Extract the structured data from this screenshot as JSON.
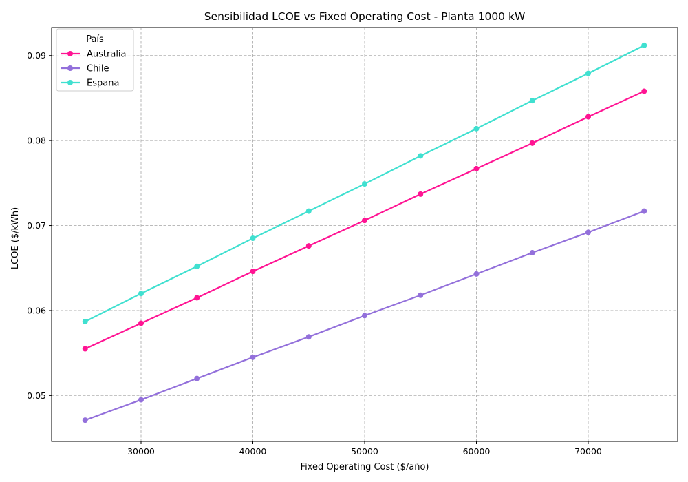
{
  "chart_data": {
    "type": "line",
    "title": "Sensibilidad LCOE vs Fixed Operating Cost - Planta 1000 kW",
    "xlabel": "Fixed Operating Cost ($/año)",
    "ylabel": "LCOE ($/kWh)",
    "xlim": [
      22000,
      78000
    ],
    "ylim": [
      0.0446,
      0.0933
    ],
    "x_ticks": [
      30000,
      40000,
      50000,
      60000,
      70000
    ],
    "y_ticks": [
      0.05,
      0.06,
      0.07,
      0.08,
      0.09
    ],
    "grid": true,
    "legend_title": "País",
    "legend_position": "top-left",
    "x": [
      25000,
      30000,
      35000,
      40000,
      45000,
      50000,
      55000,
      60000,
      65000,
      70000,
      75000
    ],
    "series": [
      {
        "name": "Australia",
        "color": "#ff1493",
        "values": [
          0.0555,
          0.0585,
          0.0615,
          0.0646,
          0.0676,
          0.0706,
          0.0737,
          0.0767,
          0.0797,
          0.0828,
          0.0858
        ]
      },
      {
        "name": "Chile",
        "color": "#9370db",
        "values": [
          0.0471,
          0.0495,
          0.052,
          0.0545,
          0.0569,
          0.0594,
          0.0618,
          0.0643,
          0.0668,
          0.0692,
          0.0717
        ]
      },
      {
        "name": "Espana",
        "color": "#40e0d0",
        "values": [
          0.0587,
          0.062,
          0.0652,
          0.0685,
          0.0717,
          0.0749,
          0.0782,
          0.0814,
          0.0847,
          0.0879,
          0.0912
        ]
      }
    ]
  }
}
